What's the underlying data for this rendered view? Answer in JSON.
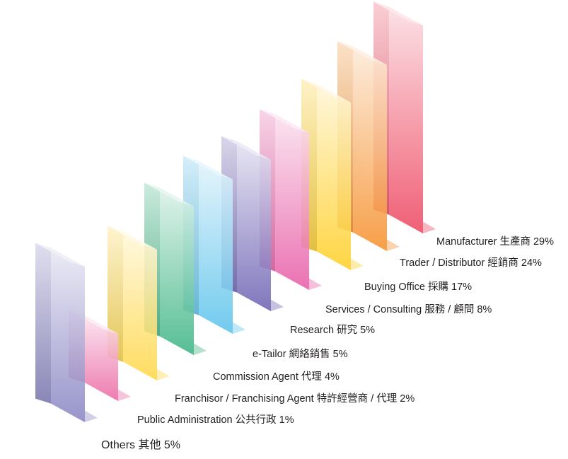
{
  "chart_data": {
    "type": "bar",
    "title": "",
    "xlabel": "",
    "ylabel": "",
    "categories": [
      "Manufacturer 生產商",
      "Trader / Distributor 經銷商",
      "Buying Office 採購",
      "Services / Consulting 服務 / 顧問",
      "Research 研究",
      "e-Tailor 網絡銷售",
      "Commission Agent 代理",
      "Franchisor /  Franchising Agent 特許經營商 / 代理",
      "Public Administration 公共行政",
      "Others 其他"
    ],
    "values": [
      29,
      24,
      17,
      8,
      5,
      5,
      4,
      2,
      1,
      5
    ],
    "labels": [
      "Manufacturer 生產商 29%",
      "Trader / Distributor 經銷商 24%",
      "Buying Office 採購 17%",
      "Services / Consulting 服務 / 顧問 8%",
      "Research 研究 5%",
      "e-Tailor 網絡銷售 5%",
      "Commission Agent 代理 4%",
      "Franchisor /  Franchising Agent 特許經營商 / 代理 2%",
      "Public Administration 公共行政 1%",
      "Others 其他 5%"
    ],
    "colors": [
      "#ee4a63",
      "#f6922f",
      "#ffd02a",
      "#e85fa8",
      "#6f64b4",
      "#5ec4ec",
      "#3fb585",
      "#ffd84a",
      "#ec6aa6",
      "#8a86c4"
    ],
    "unit": "%"
  }
}
